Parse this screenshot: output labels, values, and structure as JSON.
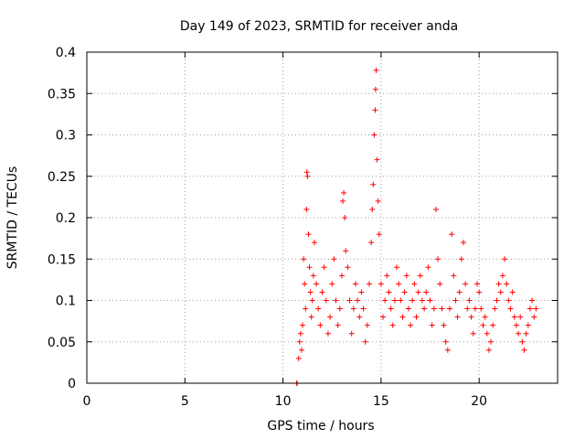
{
  "chart_data": {
    "type": "scatter",
    "title": "Day 149 of 2023, SRMTID for receiver anda",
    "xlabel": "GPS time / hours",
    "ylabel": "SRMTID / TECUs",
    "xlim": [
      0,
      24
    ],
    "ylim": [
      0,
      0.4
    ],
    "xticks": [
      0,
      5,
      10,
      15,
      20
    ],
    "xtick_labels": [
      "0",
      "5",
      "10",
      "15",
      "20"
    ],
    "yticks": [
      0,
      0.05,
      0.1,
      0.15,
      0.2,
      0.25,
      0.3,
      0.35,
      0.4
    ],
    "ytick_labels": [
      "0",
      "0.05",
      "0.1",
      "0.15",
      "0.2",
      "0.25",
      "0.3",
      "0.35",
      "0.4"
    ],
    "grid": true,
    "marker": "plus",
    "color": "#ff0000",
    "series": [
      {
        "name": "SRMTID",
        "points": [
          [
            10.7,
            0.0
          ],
          [
            10.72,
            0.0
          ],
          [
            10.8,
            0.03
          ],
          [
            10.85,
            0.05
          ],
          [
            10.9,
            0.06
          ],
          [
            10.95,
            0.04
          ],
          [
            11.0,
            0.07
          ],
          [
            11.05,
            0.15
          ],
          [
            11.1,
            0.12
          ],
          [
            11.15,
            0.09
          ],
          [
            11.2,
            0.21
          ],
          [
            11.22,
            0.255
          ],
          [
            11.25,
            0.25
          ],
          [
            11.3,
            0.18
          ],
          [
            11.35,
            0.14
          ],
          [
            11.4,
            0.11
          ],
          [
            11.45,
            0.08
          ],
          [
            11.5,
            0.1
          ],
          [
            11.55,
            0.13
          ],
          [
            11.6,
            0.17
          ],
          [
            11.7,
            0.12
          ],
          [
            11.8,
            0.09
          ],
          [
            11.9,
            0.07
          ],
          [
            12.0,
            0.11
          ],
          [
            12.1,
            0.14
          ],
          [
            12.2,
            0.1
          ],
          [
            12.3,
            0.06
          ],
          [
            12.4,
            0.08
          ],
          [
            12.5,
            0.12
          ],
          [
            12.6,
            0.15
          ],
          [
            12.7,
            0.1
          ],
          [
            12.8,
            0.07
          ],
          [
            12.9,
            0.09
          ],
          [
            13.0,
            0.13
          ],
          [
            13.05,
            0.22
          ],
          [
            13.1,
            0.23
          ],
          [
            13.15,
            0.2
          ],
          [
            13.2,
            0.16
          ],
          [
            13.3,
            0.14
          ],
          [
            13.4,
            0.1
          ],
          [
            13.5,
            0.06
          ],
          [
            13.6,
            0.09
          ],
          [
            13.7,
            0.12
          ],
          [
            13.8,
            0.1
          ],
          [
            13.9,
            0.08
          ],
          [
            14.0,
            0.11
          ],
          [
            14.1,
            0.09
          ],
          [
            14.2,
            0.05
          ],
          [
            14.3,
            0.07
          ],
          [
            14.4,
            0.12
          ],
          [
            14.5,
            0.17
          ],
          [
            14.55,
            0.21
          ],
          [
            14.6,
            0.24
          ],
          [
            14.65,
            0.3
          ],
          [
            14.7,
            0.33
          ],
          [
            14.72,
            0.355
          ],
          [
            14.75,
            0.378
          ],
          [
            14.8,
            0.27
          ],
          [
            14.85,
            0.22
          ],
          [
            14.9,
            0.18
          ],
          [
            15.0,
            0.12
          ],
          [
            15.1,
            0.08
          ],
          [
            15.2,
            0.1
          ],
          [
            15.3,
            0.13
          ],
          [
            15.4,
            0.11
          ],
          [
            15.5,
            0.09
          ],
          [
            15.6,
            0.07
          ],
          [
            15.7,
            0.1
          ],
          [
            15.8,
            0.14
          ],
          [
            15.9,
            0.12
          ],
          [
            16.0,
            0.1
          ],
          [
            16.1,
            0.08
          ],
          [
            16.2,
            0.11
          ],
          [
            16.3,
            0.13
          ],
          [
            16.4,
            0.09
          ],
          [
            16.5,
            0.07
          ],
          [
            16.6,
            0.1
          ],
          [
            16.7,
            0.12
          ],
          [
            16.8,
            0.08
          ],
          [
            16.9,
            0.11
          ],
          [
            17.0,
            0.13
          ],
          [
            17.1,
            0.1
          ],
          [
            17.2,
            0.09
          ],
          [
            17.3,
            0.11
          ],
          [
            17.4,
            0.14
          ],
          [
            17.5,
            0.1
          ],
          [
            17.6,
            0.07
          ],
          [
            17.7,
            0.09
          ],
          [
            17.8,
            0.21
          ],
          [
            17.9,
            0.15
          ],
          [
            18.0,
            0.12
          ],
          [
            18.1,
            0.09
          ],
          [
            18.2,
            0.07
          ],
          [
            18.3,
            0.05
          ],
          [
            18.4,
            0.04
          ],
          [
            18.5,
            0.09
          ],
          [
            18.6,
            0.18
          ],
          [
            18.7,
            0.13
          ],
          [
            18.8,
            0.1
          ],
          [
            18.9,
            0.08
          ],
          [
            19.0,
            0.11
          ],
          [
            19.1,
            0.15
          ],
          [
            19.2,
            0.17
          ],
          [
            19.3,
            0.12
          ],
          [
            19.4,
            0.09
          ],
          [
            19.5,
            0.1
          ],
          [
            19.6,
            0.08
          ],
          [
            19.7,
            0.06
          ],
          [
            19.8,
            0.09
          ],
          [
            19.9,
            0.12
          ],
          [
            20.0,
            0.11
          ],
          [
            20.1,
            0.09
          ],
          [
            20.2,
            0.07
          ],
          [
            20.3,
            0.08
          ],
          [
            20.4,
            0.06
          ],
          [
            20.5,
            0.04
          ],
          [
            20.6,
            0.05
          ],
          [
            20.7,
            0.07
          ],
          [
            20.8,
            0.09
          ],
          [
            20.9,
            0.1
          ],
          [
            21.0,
            0.12
          ],
          [
            21.1,
            0.11
          ],
          [
            21.2,
            0.13
          ],
          [
            21.3,
            0.15
          ],
          [
            21.4,
            0.12
          ],
          [
            21.5,
            0.1
          ],
          [
            21.6,
            0.09
          ],
          [
            21.7,
            0.11
          ],
          [
            21.8,
            0.08
          ],
          [
            21.9,
            0.07
          ],
          [
            22.0,
            0.06
          ],
          [
            22.1,
            0.08
          ],
          [
            22.2,
            0.05
          ],
          [
            22.3,
            0.04
          ],
          [
            22.4,
            0.06
          ],
          [
            22.5,
            0.07
          ],
          [
            22.6,
            0.09
          ],
          [
            22.7,
            0.1
          ],
          [
            22.8,
            0.08
          ],
          [
            22.9,
            0.09
          ]
        ]
      }
    ]
  }
}
